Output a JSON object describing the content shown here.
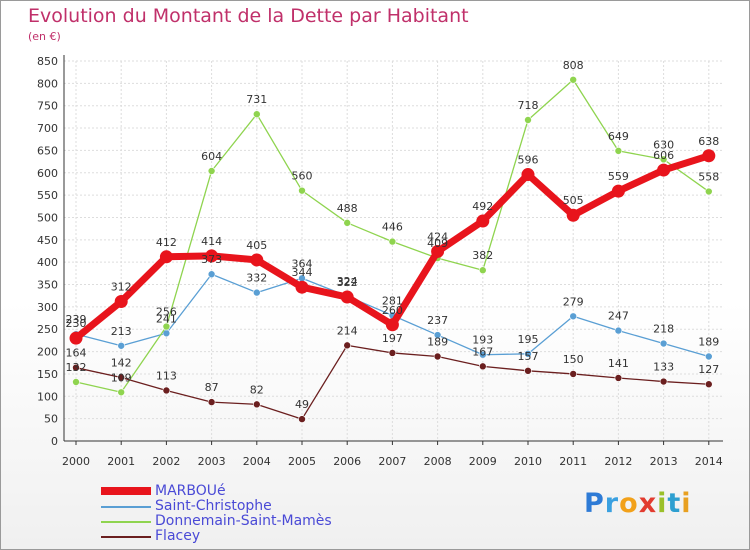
{
  "header": {
    "title": "Evolution du Montant de la Dette par Habitant",
    "unit": "(en €)"
  },
  "logo": {
    "text": "Proxiti"
  },
  "chart_data": {
    "type": "line",
    "title": "Evolution du Montant de la Dette par Habitant",
    "ylabel": "(en €)",
    "x": [
      "2000",
      "2001",
      "2002",
      "2003",
      "2004",
      "2005",
      "2006",
      "2007",
      "2008",
      "2009",
      "2010",
      "2011",
      "2012",
      "2013",
      "2014"
    ],
    "ylim": [
      0,
      850
    ],
    "yticks": [
      0,
      50,
      100,
      150,
      200,
      250,
      300,
      350,
      400,
      450,
      500,
      550,
      600,
      650,
      700,
      750,
      800,
      850
    ],
    "grid": true,
    "legend_position": "bottom-left",
    "series": [
      {
        "name": "MARBOUé",
        "color": "#e8141c",
        "values": [
          230,
          312,
          412,
          414,
          405,
          344,
          322,
          260,
          424,
          492,
          596,
          505,
          559,
          606,
          638
        ]
      },
      {
        "name": "Saint-Christophe",
        "color": "#5a9fd4",
        "values": [
          239,
          213,
          241,
          373,
          332,
          364,
          324,
          281,
          237,
          193,
          195,
          279,
          247,
          218,
          189
        ]
      },
      {
        "name": "Donnemain-Saint-Mamès",
        "color": "#8fd44f",
        "values": [
          132,
          109,
          256,
          604,
          731,
          560,
          488,
          446,
          409,
          382,
          718,
          808,
          649,
          630,
          558
        ]
      },
      {
        "name": "Flacey",
        "color": "#6b1f1f",
        "values": [
          164,
          142,
          113,
          87,
          82,
          49,
          214,
          197,
          189,
          167,
          157,
          150,
          141,
          133,
          127
        ]
      }
    ]
  }
}
